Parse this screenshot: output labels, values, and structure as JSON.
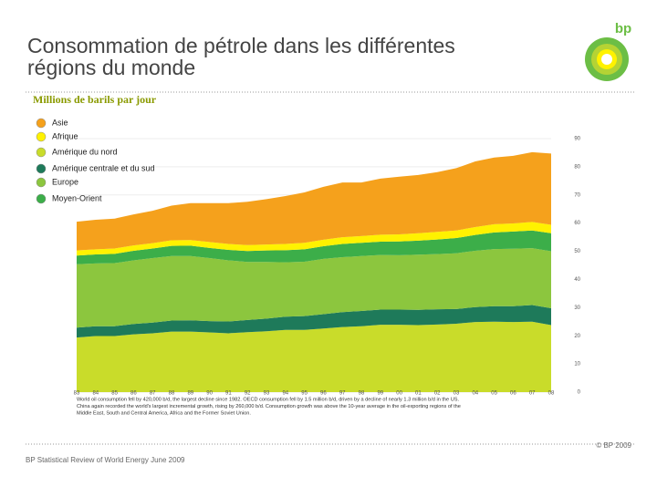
{
  "header": {
    "title": [
      "Consommation de pétrole dans les différentes",
      "régions du monde"
    ],
    "logo": "bp"
  },
  "chart_data": {
    "type": "stacked-area",
    "subtitle": "Millions de barils par jour",
    "categories": [
      "83",
      "84",
      "85",
      "86",
      "87",
      "88",
      "89",
      "90",
      "91",
      "92",
      "93",
      "94",
      "95",
      "96",
      "97",
      "98",
      "99",
      "00",
      "01",
      "02",
      "03",
      "04",
      "05",
      "06",
      "07",
      "08"
    ],
    "series": [
      {
        "name": "Asie",
        "color": "#f5a11c",
        "values": [
          10.2,
          10.5,
          10.6,
          11.0,
          11.5,
          12.3,
          13.1,
          13.8,
          14.5,
          15.4,
          16.1,
          17.0,
          17.9,
          18.8,
          19.4,
          19.0,
          19.9,
          20.5,
          20.7,
          21.2,
          22.1,
          23.3,
          23.7,
          24.0,
          24.8,
          25.3
        ]
      },
      {
        "name": "Afrique",
        "color": "#fff200",
        "values": [
          1.8,
          1.8,
          1.9,
          1.9,
          1.9,
          2.0,
          2.0,
          2.1,
          2.1,
          2.1,
          2.1,
          2.2,
          2.3,
          2.3,
          2.4,
          2.4,
          2.5,
          2.5,
          2.6,
          2.7,
          2.7,
          2.8,
          2.9,
          2.9,
          3.0,
          3.0
        ]
      },
      {
        "name": "Amérique du nord",
        "color": "#c9dc2a",
        "values": [
          19.4,
          19.9,
          19.9,
          20.5,
          20.9,
          21.5,
          21.5,
          21.2,
          20.9,
          21.3,
          21.6,
          22.1,
          22.1,
          22.6,
          23.1,
          23.4,
          23.9,
          23.9,
          23.8,
          24.0,
          24.3,
          24.9,
          25.0,
          24.9,
          25.0,
          23.8
        ]
      },
      {
        "name": "Amérique centrale et du sud",
        "color": "#1e7a5a",
        "values": [
          3.5,
          3.5,
          3.5,
          3.7,
          3.8,
          3.9,
          4.0,
          4.0,
          4.2,
          4.3,
          4.5,
          4.7,
          4.9,
          5.1,
          5.3,
          5.4,
          5.4,
          5.4,
          5.4,
          5.4,
          5.2,
          5.3,
          5.5,
          5.6,
          5.9,
          6.0
        ]
      },
      {
        "name": "Europe",
        "color": "#8cc63e",
        "values": [
          22.5,
          22.3,
          22.4,
          22.6,
          22.9,
          22.9,
          22.8,
          22.4,
          21.7,
          20.6,
          20.1,
          19.3,
          19.3,
          19.6,
          19.5,
          19.5,
          19.4,
          19.3,
          19.6,
          19.6,
          19.8,
          20.0,
          20.3,
          20.4,
          20.2,
          20.2
        ]
      },
      {
        "name": "Moyen-Orient",
        "color": "#3cae49",
        "values": [
          3.1,
          3.2,
          3.3,
          3.4,
          3.4,
          3.6,
          3.7,
          3.6,
          3.7,
          3.9,
          4.1,
          4.3,
          4.4,
          4.5,
          4.7,
          4.7,
          4.7,
          4.9,
          5.0,
          5.2,
          5.4,
          5.6,
          5.9,
          6.1,
          6.3,
          6.4
        ]
      }
    ],
    "ylim": [
      0,
      90
    ],
    "yticks": [
      0,
      10,
      20,
      30,
      40,
      50,
      60,
      70,
      80,
      90
    ],
    "note": [
      "World oil consumption fell by 420,000 b/d, the largest decline since 1982. OECD consumption fell by 1.5 million b/d, driven by a decline of nearly 1.3 million b/d in the US.",
      "China again recorded the world's largest incremental growth, rising by 260,000 b/d. Consumption growth was above the 10-year average in the oil-exporting regions of the",
      "Middle East, South and Central America, Africa and the Former Soviet Union."
    ]
  },
  "footer": {
    "copyright": "© BP 2009",
    "source": "BP Statistical Review of World Energy June 2009"
  }
}
